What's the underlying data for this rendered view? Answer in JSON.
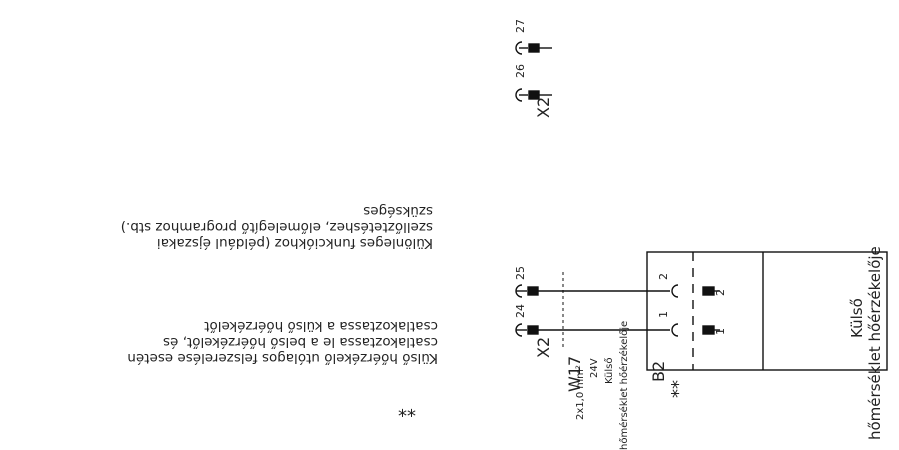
{
  "note_a": {
    "marker": "**",
    "lines": [
      "Külső hőérzékelő utólagos felszerelése esetén",
      "csatlakoztassa le a belső hőérzékelőt, és",
      "csatlakoztassa a külső hőérzékelőt"
    ]
  },
  "note_b": {
    "lines": [
      "Különleges funkciókhoz (például éjszakai",
      "szellőztetéshez, előmelegítő programhoz stb.)",
      "szükséges"
    ]
  },
  "connector_top": {
    "name": "X2",
    "pins": [
      "26",
      "27"
    ]
  },
  "connector_bottom": {
    "name": "X2",
    "pins": [
      "24",
      "25"
    ]
  },
  "cable": {
    "name": "W17",
    "spec": "2x1,0 mm²",
    "voltage": "24V",
    "desc_line1": "Külső",
    "desc_line2": "hőmérséklet hőérzékelője"
  },
  "sensor": {
    "name": "B2",
    "marker": "**",
    "label_line1": "Külső",
    "label_line2": "hőmérséklet hőérzékelője",
    "terminals_left": [
      "1",
      "2"
    ],
    "terminals_right": [
      "1",
      "2"
    ]
  }
}
